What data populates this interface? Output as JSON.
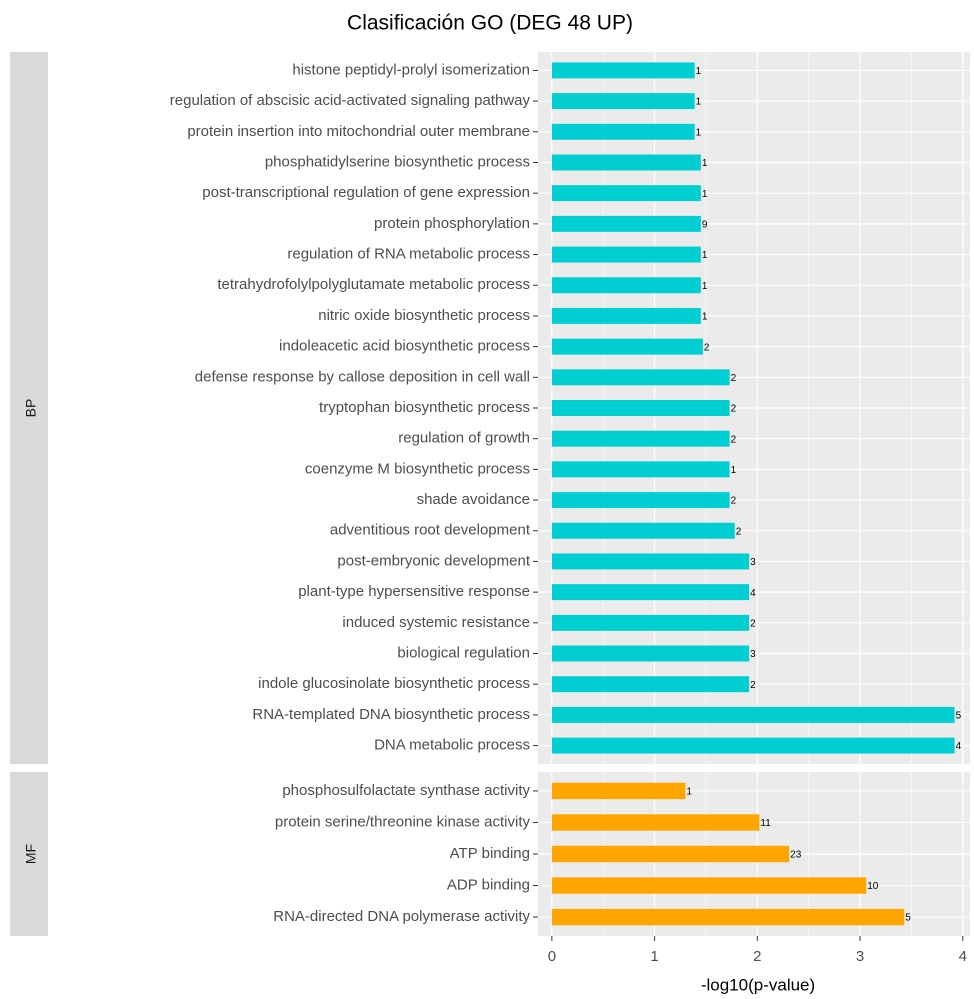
{
  "chart_data": {
    "type": "bar",
    "title": "Clasificación GO (DEG 48 UP)",
    "xlabel": "-log10(p-value)",
    "xlim": [
      -0.135,
      4.07
    ],
    "xticks": [
      0,
      1,
      2,
      3,
      4
    ],
    "grid": true,
    "facets": [
      {
        "name": "BP",
        "color": "#00CED1",
        "categories": [
          "histone peptidyl-prolyl isomerization",
          "regulation of abscisic acid-activated signaling pathway",
          "protein insertion into mitochondrial outer membrane",
          "phosphatidylserine biosynthetic process",
          "post-transcriptional regulation of gene expression",
          "protein phosphorylation",
          "regulation of RNA metabolic process",
          "tetrahydrofolylpolyglutamate metabolic process",
          "nitric oxide biosynthetic process",
          "indoleacetic acid biosynthetic process",
          "defense response by callose deposition in cell wall",
          "tryptophan biosynthetic process",
          "regulation of growth",
          "coenzyme M biosynthetic process",
          "shade avoidance",
          "adventitious root development",
          "post-embryonic development",
          "plant-type hypersensitive response",
          "induced systemic resistance",
          "biological regulation",
          "indole glucosinolate biosynthetic process",
          "RNA-templated DNA biosynthetic process",
          "DNA metabolic process"
        ],
        "values": [
          1.39,
          1.39,
          1.39,
          1.45,
          1.45,
          1.45,
          1.45,
          1.45,
          1.45,
          1.47,
          1.73,
          1.73,
          1.73,
          1.73,
          1.73,
          1.78,
          1.92,
          1.92,
          1.92,
          1.92,
          1.92,
          3.92,
          3.92
        ],
        "counts": [
          1,
          1,
          1,
          1,
          1,
          9,
          1,
          1,
          1,
          2,
          2,
          2,
          2,
          1,
          2,
          2,
          3,
          4,
          2,
          3,
          2,
          5,
          4
        ]
      },
      {
        "name": "MF",
        "color": "#FFA500",
        "categories": [
          "phosphosulfolactate synthase activity",
          "protein serine/threonine kinase activity",
          "ATP binding",
          "ADP binding",
          "RNA-directed DNA polymerase activity"
        ],
        "values": [
          1.3,
          2.02,
          2.31,
          3.06,
          3.43
        ],
        "counts": [
          1,
          11,
          23,
          10,
          5
        ]
      }
    ]
  }
}
